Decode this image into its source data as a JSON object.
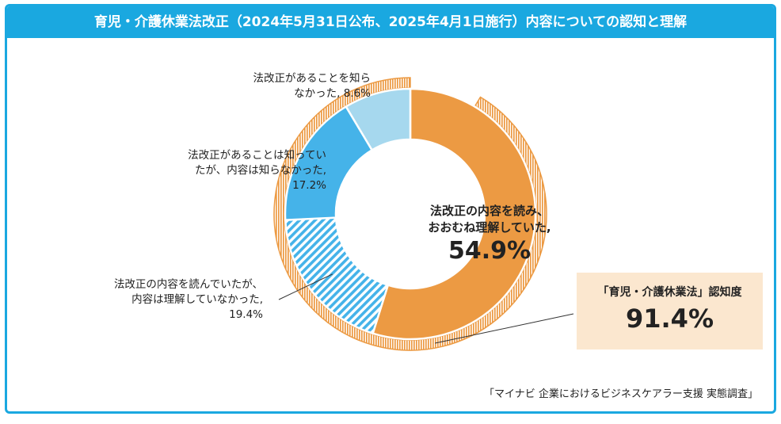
{
  "title": "育児・介護休業法改正（2024年5月31日公布、2025年4月1日施行）内容についての認知と理解",
  "colors": {
    "accent": "#1aa8e0",
    "orange": "#ec9a43",
    "blue": "#45b3e9",
    "light_blue": "#a6d8ee",
    "highlight_box": "#fbe7cf"
  },
  "chart_data": {
    "type": "pie",
    "variant": "donut",
    "title": "育児・介護休業法改正（2024年5月31日公布、2025年4月1日施行）内容についての認知と理解",
    "unit": "%",
    "segments": [
      {
        "label_lines": [
          "法改正の内容を読み、",
          "おおむね理解していた,"
        ],
        "value": 54.9,
        "value_text": "54.9%",
        "style": "solid-orange"
      },
      {
        "label_lines": [
          "法改正の内容を読んでいたが、",
          "内容は理解していなかった,"
        ],
        "value": 19.4,
        "value_text": "19.4%",
        "style": "hatched-blue"
      },
      {
        "label_lines": [
          "法改正があることは知ってい",
          "たが、内容は知らなかった,"
        ],
        "value": 17.2,
        "value_text": "17.2%",
        "style": "solid-blue"
      },
      {
        "label_lines": [
          "法改正があることを知ら",
          "なかった,"
        ],
        "value": 8.6,
        "value_text": "8.6%",
        "style": "light-blue"
      }
    ],
    "awareness": {
      "label": "「育児・介護休業法」認知度",
      "value": 91.4,
      "value_text": "91.4%"
    },
    "source": "「マイナビ 企業におけるビジネスケアラー支援 実態調査」"
  }
}
